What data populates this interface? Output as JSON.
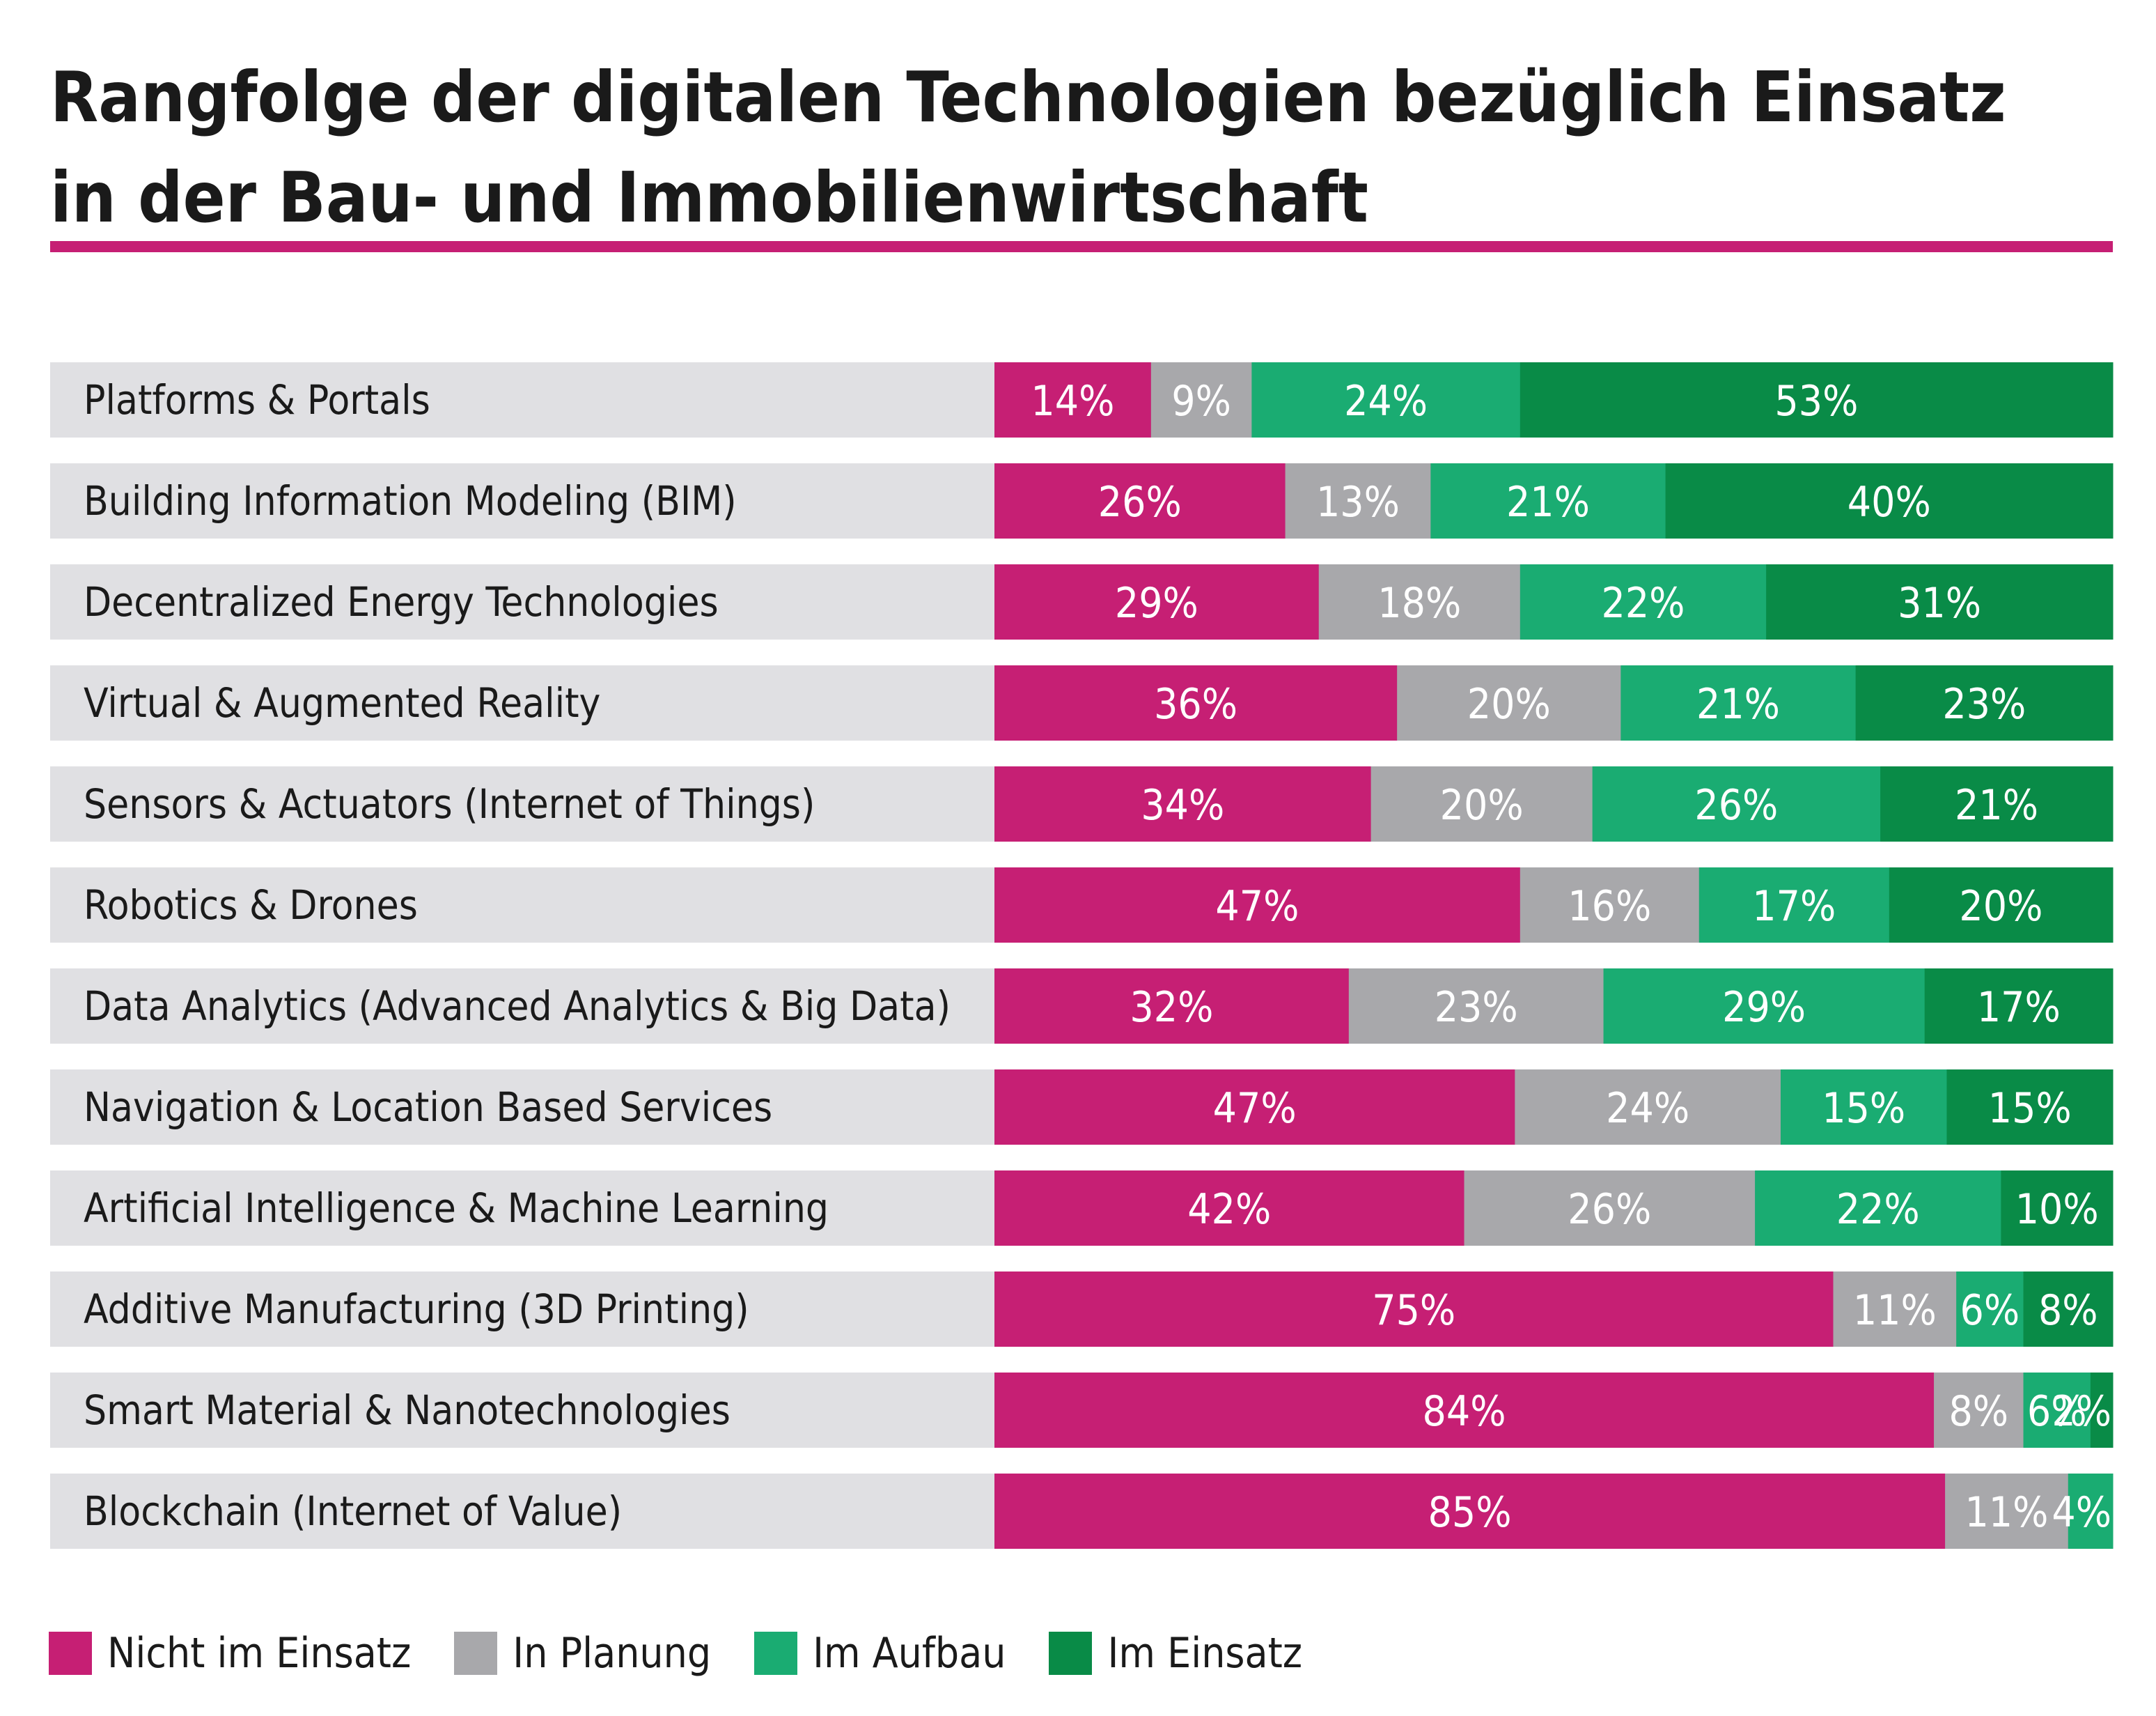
{
  "header": {
    "title_line1": "Rangfolge der digitalen Technologien bezüglich Einsatz",
    "title_line2": "in der Bau- und Immobilienwirtschaft"
  },
  "colors": {
    "accent": "#c61f74",
    "row_background": "#e0e0e3",
    "nicht_im_einsatz": "#c61f74",
    "in_planung": "#a8a8ab",
    "im_aufbau": "#1aac72",
    "im_einsatz": "#098b47"
  },
  "chart_data": {
    "type": "bar",
    "orientation": "horizontal",
    "stacked": true,
    "normalized_percent": true,
    "legend_position": "bottom-left",
    "grid": false,
    "categories": [
      "Platforms & Portals",
      "Building Information Modeling (BIM)",
      "Decentralized Energy Technologies",
      "Virtual & Augmented Reality",
      "Sensors & Actuators (Internet of Things)",
      "Robotics & Drones",
      "Data Analytics (Advanced Analytics & Big Data)",
      "Navigation & Location Based Services",
      "Artificial Intelligence & Machine Learning",
      "Additive Manufacturing (3D Printing)",
      "Smart Material & Nanotechnologies",
      "Blockchain (Internet of Value)"
    ],
    "series": [
      {
        "name": "Nicht im Einsatz",
        "color": "#c61f74",
        "values": [
          14,
          26,
          29,
          36,
          34,
          47,
          32,
          47,
          42,
          75,
          84,
          85
        ]
      },
      {
        "name": "In Planung",
        "color": "#a8a8ab",
        "values": [
          9,
          13,
          18,
          20,
          20,
          16,
          23,
          24,
          26,
          11,
          8,
          11
        ]
      },
      {
        "name": "Im Aufbau",
        "color": "#1aac72",
        "values": [
          24,
          21,
          22,
          21,
          26,
          17,
          29,
          15,
          22,
          6,
          6,
          4
        ]
      },
      {
        "name": "Im Einsatz",
        "color": "#098b47",
        "values": [
          53,
          40,
          31,
          23,
          21,
          20,
          17,
          15,
          10,
          8,
          2,
          0
        ]
      }
    ],
    "data_labels": [
      [
        "14%",
        "9%",
        "24%",
        "53%"
      ],
      [
        "26%",
        "13%",
        "21%",
        "40%"
      ],
      [
        "29%",
        "18%",
        "22%",
        "31%"
      ],
      [
        "36%",
        "20%",
        "21%",
        "23%"
      ],
      [
        "34%",
        "20%",
        "26%",
        "21%"
      ],
      [
        "47%",
        "16%",
        "17%",
        "20%"
      ],
      [
        "32%",
        "23%",
        "29%",
        "17%"
      ],
      [
        "47%",
        "24%",
        "15%",
        "15%"
      ],
      [
        "42%",
        "26%",
        "22%",
        "10%"
      ],
      [
        "75%",
        "11%",
        "6%",
        "8%"
      ],
      [
        "84%",
        "8%",
        "6%",
        "2%"
      ],
      [
        "85%",
        "11%",
        "4%",
        ""
      ]
    ]
  }
}
